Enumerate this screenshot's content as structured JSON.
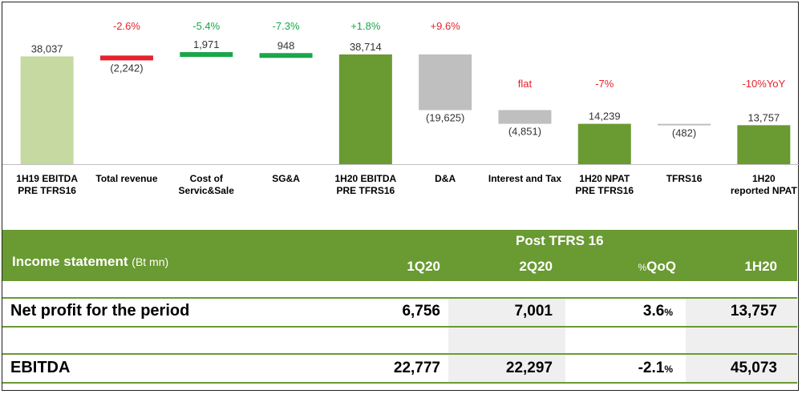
{
  "chart_data": {
    "type": "bar",
    "subtype": "waterfall",
    "categories": [
      [
        "1H19 EBITDA",
        "PRE TFRS16"
      ],
      [
        "Total revenue"
      ],
      [
        "Cost of",
        "Servic&Sale"
      ],
      [
        "SG&A"
      ],
      [
        "1H20 EBITDA",
        "PRE TFRS16"
      ],
      [
        "D&A"
      ],
      [
        "Interest and Tax"
      ],
      [
        "1H20 NPAT",
        "PRE TFRS16"
      ],
      [
        "TFRS16"
      ],
      [
        "1H20",
        "reported NPAT"
      ]
    ],
    "steps": [
      {
        "kind": "total",
        "value": 38037,
        "label": "38,037",
        "change": "",
        "change_color": ""
      },
      {
        "kind": "decrease",
        "value": -2242,
        "label": "(2,242)",
        "change": "-2.6%",
        "change_color": "#e8202a"
      },
      {
        "kind": "increase",
        "value": 1971,
        "label": "1,971",
        "change": "-5.4%",
        "change_color": "#1aa64a"
      },
      {
        "kind": "increase",
        "value": 948,
        "label": "948",
        "change": "-7.3%",
        "change_color": "#1aa64a"
      },
      {
        "kind": "total",
        "value": 38714,
        "label": "38,714",
        "change": "+1.8%",
        "change_color": "#1aa64a"
      },
      {
        "kind": "deduction",
        "value": -19625,
        "label": "(19,625)",
        "change": "+9.6%",
        "change_color": "#e8202a"
      },
      {
        "kind": "deduction",
        "value": -4851,
        "label": "(4,851)",
        "change": "flat",
        "change_color": "#e8202a"
      },
      {
        "kind": "total",
        "value": 14239,
        "label": "14,239",
        "change": "-7%",
        "change_color": "#e8202a"
      },
      {
        "kind": "deduction",
        "value": -482,
        "label": "(482)",
        "change": "",
        "change_color": ""
      },
      {
        "kind": "total",
        "value": 13757,
        "label": "13,757",
        "change": "-10%YoY",
        "change_color": "#e8202a"
      }
    ],
    "colors": {
      "first_total": "#c5d9a0",
      "total": "#6a9a32",
      "decrease": "#e8202a",
      "increase": "#1aa64a",
      "deduction": "#bfbfbf"
    },
    "title": "",
    "xlabel": "",
    "ylabel": "",
    "grid": false,
    "legend": "none"
  },
  "table": {
    "title": "Income statement",
    "unit": "(Bt mn)",
    "group_header": "Post TFRS 16",
    "columns": [
      {
        "text": "1Q20",
        "suffix": ""
      },
      {
        "text": "2Q20",
        "suffix": ""
      },
      {
        "text": "QoQ",
        "prefix": "%"
      },
      {
        "text": "1H20",
        "suffix": ""
      }
    ],
    "rows": [
      {
        "label": "Net profit for the period",
        "q1": "6,756",
        "q2": "7,001",
        "qoq": "3.6",
        "qoq_unit": "%",
        "h1": "13,757"
      },
      {
        "label": "EBITDA",
        "q1": "22,777",
        "q2": "22,297",
        "qoq": "-2.1",
        "qoq_unit": "%",
        "h1": "45,073"
      }
    ],
    "accent": "#6a9a32"
  }
}
